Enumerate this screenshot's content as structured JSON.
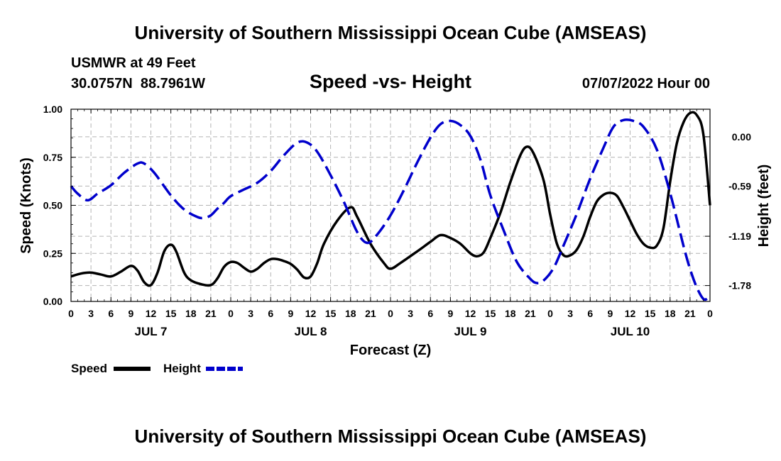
{
  "header": {
    "title": "University of Southern Mississippi Ocean Cube (AMSEAS)",
    "station": "USMWR at 49 Feet",
    "coords": "30.0757N  88.7961W",
    "date": "07/07/2022 Hour 00",
    "bottom_title": "University of Southern Mississippi Ocean Cube (AMSEAS)"
  },
  "chart_data": {
    "type": "line",
    "title": "Speed -vs- Height",
    "xlabel": "Forecast (Z)",
    "ylabel_left": "Speed (Knots)",
    "ylabel_right": "Height (feet)",
    "xlim": [
      0,
      96
    ],
    "ylim_left": [
      0,
      1.0
    ],
    "ylim_right": [
      -1.97,
      0.33
    ],
    "x_tick_labels": [
      "0",
      "3",
      "6",
      "9",
      "12",
      "15",
      "18",
      "21",
      "0",
      "3",
      "6",
      "9",
      "12",
      "15",
      "18",
      "21",
      "0",
      "3",
      "6",
      "9",
      "12",
      "15",
      "18",
      "21",
      "0",
      "3",
      "6",
      "9",
      "12",
      "15",
      "18",
      "21",
      "0"
    ],
    "day_labels": [
      {
        "label": "JUL 7",
        "x": 12
      },
      {
        "label": "JUL 8",
        "x": 36
      },
      {
        "label": "JUL 9",
        "x": 60
      },
      {
        "label": "JUL 10",
        "x": 84
      }
    ],
    "left_ticks": [
      {
        "value": 0.0,
        "label": "0.00"
      },
      {
        "value": 0.25,
        "label": "0.25"
      },
      {
        "value": 0.5,
        "label": "0.50"
      },
      {
        "value": 0.75,
        "label": "0.75"
      },
      {
        "value": 1.0,
        "label": "1.00"
      }
    ],
    "right_ticks": [
      {
        "value": 0.0,
        "label": "0.00"
      },
      {
        "value": -0.59,
        "label": "-0.59"
      },
      {
        "value": -1.19,
        "label": "-1.19"
      },
      {
        "value": -1.78,
        "label": "-1.78"
      }
    ],
    "series": [
      {
        "name": "Speed",
        "axis": "left",
        "color": "#000000",
        "dash": "solid",
        "points": [
          [
            0,
            0.13
          ],
          [
            1.5,
            0.145
          ],
          [
            3,
            0.15
          ],
          [
            4.5,
            0.14
          ],
          [
            6,
            0.13
          ],
          [
            7.5,
            0.155
          ],
          [
            9,
            0.185
          ],
          [
            10,
            0.16
          ],
          [
            11,
            0.1
          ],
          [
            12,
            0.085
          ],
          [
            13,
            0.15
          ],
          [
            14,
            0.26
          ],
          [
            15,
            0.295
          ],
          [
            15.8,
            0.26
          ],
          [
            17,
            0.15
          ],
          [
            18,
            0.11
          ],
          [
            19.5,
            0.09
          ],
          [
            21,
            0.085
          ],
          [
            22,
            0.12
          ],
          [
            23,
            0.18
          ],
          [
            24,
            0.205
          ],
          [
            25,
            0.2
          ],
          [
            26,
            0.175
          ],
          [
            27,
            0.155
          ],
          [
            28,
            0.17
          ],
          [
            29,
            0.2
          ],
          [
            30,
            0.22
          ],
          [
            31,
            0.22
          ],
          [
            32,
            0.21
          ],
          [
            33,
            0.195
          ],
          [
            34,
            0.165
          ],
          [
            35,
            0.125
          ],
          [
            36,
            0.13
          ],
          [
            37,
            0.2
          ],
          [
            38,
            0.3
          ],
          [
            40,
            0.42
          ],
          [
            42,
            0.49
          ],
          [
            43,
            0.44
          ],
          [
            45,
            0.3
          ],
          [
            47,
            0.2
          ],
          [
            48,
            0.17
          ],
          [
            49.5,
            0.2
          ],
          [
            52,
            0.26
          ],
          [
            54,
            0.31
          ],
          [
            55.5,
            0.345
          ],
          [
            57,
            0.33
          ],
          [
            58.5,
            0.3
          ],
          [
            60,
            0.25
          ],
          [
            61,
            0.235
          ],
          [
            62,
            0.255
          ],
          [
            63,
            0.33
          ],
          [
            64.5,
            0.46
          ],
          [
            66,
            0.62
          ],
          [
            67.5,
            0.76
          ],
          [
            68.5,
            0.805
          ],
          [
            69.5,
            0.77
          ],
          [
            71,
            0.63
          ],
          [
            72,
            0.45
          ],
          [
            73,
            0.3
          ],
          [
            74,
            0.24
          ],
          [
            75,
            0.24
          ],
          [
            76,
            0.27
          ],
          [
            77,
            0.34
          ],
          [
            78,
            0.44
          ],
          [
            79,
            0.52
          ],
          [
            80,
            0.555
          ],
          [
            81,
            0.565
          ],
          [
            82,
            0.55
          ],
          [
            83,
            0.49
          ],
          [
            84,
            0.42
          ],
          [
            85,
            0.35
          ],
          [
            86,
            0.3
          ],
          [
            87,
            0.28
          ],
          [
            88,
            0.29
          ],
          [
            89,
            0.38
          ],
          [
            90,
            0.62
          ],
          [
            91,
            0.82
          ],
          [
            92,
            0.93
          ],
          [
            93,
            0.98
          ],
          [
            94,
            0.97
          ],
          [
            95,
            0.87
          ],
          [
            96,
            0.5
          ]
        ]
      },
      {
        "name": "Height",
        "axis": "right",
        "color": "#0000cc",
        "dash": "dashed",
        "points": [
          [
            0,
            -0.59
          ],
          [
            1,
            -0.68
          ],
          [
            2.5,
            -0.76
          ],
          [
            4,
            -0.68
          ],
          [
            6,
            -0.58
          ],
          [
            8,
            -0.43
          ],
          [
            10,
            -0.32
          ],
          [
            11,
            -0.32
          ],
          [
            12.5,
            -0.43
          ],
          [
            15,
            -0.7
          ],
          [
            17,
            -0.87
          ],
          [
            19,
            -0.96
          ],
          [
            20,
            -0.97
          ],
          [
            21,
            -0.94
          ],
          [
            22,
            -0.86
          ],
          [
            23,
            -0.79
          ],
          [
            24,
            -0.71
          ],
          [
            26,
            -0.63
          ],
          [
            28,
            -0.55
          ],
          [
            30,
            -0.41
          ],
          [
            32,
            -0.22
          ],
          [
            34,
            -0.07
          ],
          [
            35.5,
            -0.07
          ],
          [
            37,
            -0.18
          ],
          [
            39,
            -0.46
          ],
          [
            41,
            -0.78
          ],
          [
            43,
            -1.14
          ],
          [
            44.5,
            -1.27
          ],
          [
            46,
            -1.17
          ],
          [
            48,
            -0.94
          ],
          [
            50,
            -0.64
          ],
          [
            52,
            -0.31
          ],
          [
            54,
            -0.01
          ],
          [
            55.5,
            0.15
          ],
          [
            57,
            0.19
          ],
          [
            58.5,
            0.14
          ],
          [
            60,
            0.01
          ],
          [
            61.5,
            -0.27
          ],
          [
            63,
            -0.7
          ],
          [
            65,
            -1.12
          ],
          [
            67,
            -1.5
          ],
          [
            69,
            -1.7
          ],
          [
            70,
            -1.75
          ],
          [
            71,
            -1.72
          ],
          [
            72.5,
            -1.57
          ],
          [
            74,
            -1.3
          ],
          [
            76,
            -0.92
          ],
          [
            78,
            -0.5
          ],
          [
            80,
            -0.13
          ],
          [
            81.5,
            0.12
          ],
          [
            83,
            0.2
          ],
          [
            84.5,
            0.19
          ],
          [
            86,
            0.12
          ],
          [
            88,
            -0.15
          ],
          [
            90,
            -0.67
          ],
          [
            92,
            -1.3
          ],
          [
            93,
            -1.58
          ],
          [
            94,
            -1.8
          ],
          [
            95,
            -1.94
          ],
          [
            95.7,
            -1.93
          ],
          [
            96,
            -1.89
          ]
        ]
      }
    ],
    "legend": [
      {
        "label": "Speed",
        "color": "#000000",
        "dash": "solid"
      },
      {
        "label": "Height",
        "color": "#0000cc",
        "dash": "dashed"
      }
    ]
  }
}
